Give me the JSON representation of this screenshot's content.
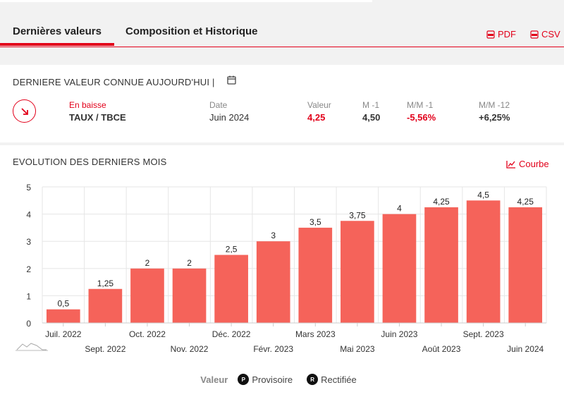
{
  "tabs": [
    {
      "label": "Dernières valeurs",
      "active": true
    },
    {
      "label": "Composition et Historique",
      "active": false
    }
  ],
  "downloads": {
    "pdf": "PDF",
    "csv": "CSV"
  },
  "latest": {
    "title": "DERNIERE VALEUR CONNUE AUJOURD'HUI |",
    "trend": "En baisse",
    "indicator": "TAUX / TBCE",
    "date_label": "Date",
    "date": "Juin 2024",
    "value_label": "Valeur",
    "value": "4,25",
    "m1_label": "M -1",
    "m1": "4,50",
    "mm1_label": "M/M -1",
    "mm1": "-5,56%",
    "mm12_label": "M/M -12",
    "mm12": "+6,25%"
  },
  "evolution": {
    "title": "EVOLUTION DES DERNIERS MOIS",
    "curve_button": "Courbe"
  },
  "legend": {
    "series": "Valeur",
    "provisoire_mark": "P",
    "provisoire": "Provisoire",
    "rectifiee_mark": "R",
    "rectifiee": "Rectifiée"
  },
  "colors": {
    "accent": "#e2001a",
    "bar": "#f5635a"
  },
  "chart_data": {
    "type": "bar",
    "categories": [
      "Juil. 2022",
      "Sept. 2022",
      "Oct. 2022",
      "Nov. 2022",
      "Déc. 2022",
      "Févr. 2023",
      "Mars 2023",
      "Mai 2023",
      "Juin 2023",
      "Août 2023",
      "Sept. 2023",
      "Juin 2024"
    ],
    "values": [
      0.5,
      1.25,
      2,
      2,
      2.5,
      3,
      3.5,
      3.75,
      4,
      4.25,
      4.5,
      4.25
    ],
    "value_labels": [
      "0,5",
      "1,25",
      "2",
      "2",
      "2,5",
      "3",
      "3,5",
      "3,75",
      "4",
      "4,25",
      "4,5",
      "4,25"
    ],
    "yticks": [
      "0",
      "1",
      "2",
      "3",
      "4",
      "5"
    ],
    "ylim": [
      0,
      5
    ],
    "grid": true
  }
}
